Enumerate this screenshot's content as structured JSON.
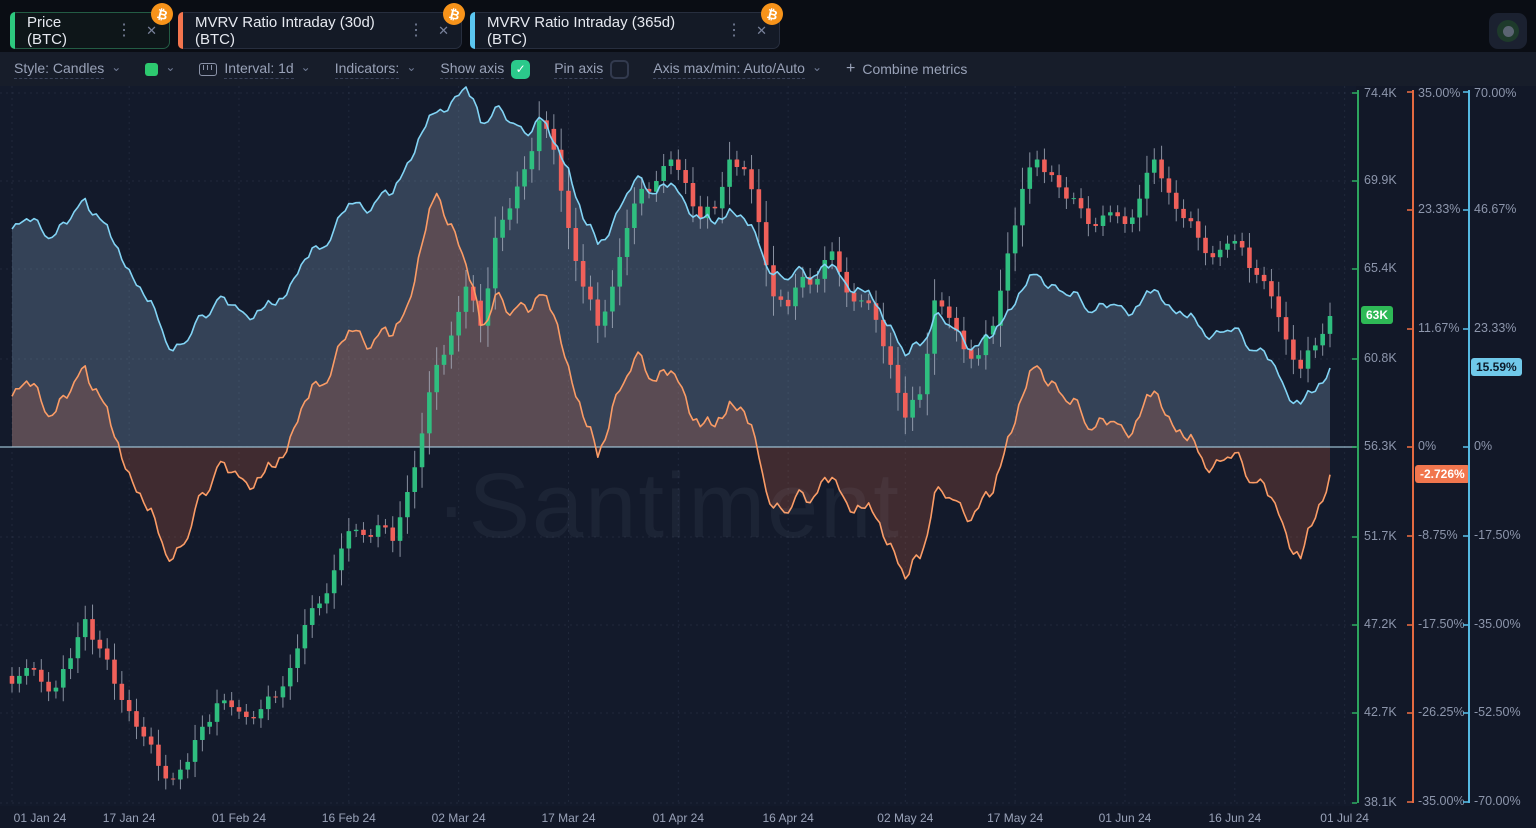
{
  "tabs": [
    {
      "label": "Price (BTC)",
      "accent": "#2dc97e",
      "selected": true
    },
    {
      "label": "MVRV Ratio Intraday (30d) (BTC)",
      "accent": "#f4754e",
      "selected": false
    },
    {
      "label": "MVRV Ratio Intraday (365d) (BTC)",
      "accent": "#5bc6f0",
      "selected": false
    }
  ],
  "tab_icons": {
    "menu": "⋮",
    "close": "✕",
    "coin": "₿"
  },
  "toolbar": {
    "style_label": "Style: Candles",
    "color_swatch": "#2dc96f",
    "interval_label": "Interval: 1d",
    "indicators_label": "Indicators:",
    "show_axis_label": "Show axis",
    "show_axis_checked": true,
    "check_glyph": "✓",
    "checkbox_on_color": "#2bc98b",
    "pin_axis_label": "Pin axis",
    "pin_axis_checked": false,
    "axis_maxmin_label": "Axis max/min: Auto/Auto",
    "combine_plus": "+",
    "combine_label": "Combine metrics",
    "caret": "⌄"
  },
  "watermark": "·Santiment",
  "axes": {
    "price": {
      "color": "#2da45f",
      "badge_bg": "#2eb956",
      "badge_text_color": "#ffffff",
      "current": "63K",
      "current_value": 63,
      "min": 38.1,
      "max": 74.4,
      "ticks": [
        {
          "v": 74.4,
          "label": "74.4K"
        },
        {
          "v": 69.9,
          "label": "69.9K"
        },
        {
          "v": 65.4,
          "label": "65.4K"
        },
        {
          "v": 60.8,
          "label": "60.8K"
        },
        {
          "v": 56.3,
          "label": "56.3K"
        },
        {
          "v": 51.7,
          "label": "51.7K"
        },
        {
          "v": 47.2,
          "label": "47.2K"
        },
        {
          "v": 42.7,
          "label": "42.7K"
        },
        {
          "v": 38.1,
          "label": "38.1K"
        }
      ]
    },
    "mvrv30": {
      "color": "#e46a41",
      "badge_bg": "#f1764e",
      "badge_text_color": "#ffffff",
      "current": "-2.726%",
      "current_value": -2.726,
      "half_range": 35,
      "ticks": [
        {
          "v": 35,
          "label": "35.00%"
        },
        {
          "v": 23.33,
          "label": "23.33%"
        },
        {
          "v": 11.67,
          "label": "11.67%"
        },
        {
          "v": 0,
          "label": "0%"
        },
        {
          "v": -8.75,
          "label": "-8.75%"
        },
        {
          "v": -17.5,
          "label": "-17.50%"
        },
        {
          "v": -26.25,
          "label": "-26.25%"
        },
        {
          "v": -35,
          "label": "-35.00%"
        }
      ]
    },
    "mvrv365": {
      "color": "#55b9e2",
      "badge_bg": "#70c9ea",
      "badge_text_color": "#0d1b2a",
      "current": "15.59%",
      "current_value": 15.59,
      "half_range": 70,
      "ticks": [
        {
          "v": 70,
          "label": "70.00%"
        },
        {
          "v": 46.67,
          "label": "46.67%"
        },
        {
          "v": 23.33,
          "label": "23.33%"
        },
        {
          "v": 0,
          "label": "0%"
        },
        {
          "v": -17.5,
          "label": "-17.50%"
        },
        {
          "v": -35,
          "label": "-35.00%"
        },
        {
          "v": -52.5,
          "label": "-52.50%"
        },
        {
          "v": -70,
          "label": "-70.00%"
        }
      ]
    }
  },
  "x_axis": {
    "total_days": 182,
    "ticks": [
      {
        "day": 0,
        "label": "01 Jan 24"
      },
      {
        "day": 16,
        "label": "17 Jan 24"
      },
      {
        "day": 31,
        "label": "01 Feb 24"
      },
      {
        "day": 46,
        "label": "16 Feb 24"
      },
      {
        "day": 61,
        "label": "02 Mar 24"
      },
      {
        "day": 76,
        "label": "17 Mar 24"
      },
      {
        "day": 91,
        "label": "01 Apr 24"
      },
      {
        "day": 106,
        "label": "16 Apr 24"
      },
      {
        "day": 122,
        "label": "02 May 24"
      },
      {
        "day": 137,
        "label": "17 May 24"
      },
      {
        "day": 152,
        "label": "01 Jun 24"
      },
      {
        "day": 167,
        "label": "16 Jun 24"
      },
      {
        "day": 182,
        "label": "01 Jul 24"
      }
    ]
  },
  "chart_data": {
    "type": "mixed",
    "title": "BTC price candles with MVRV Ratio Intraday 30d and 365d overlays",
    "x": {
      "start": "01 Jan 24",
      "end": "01 Jul 24",
      "points": 91,
      "step_days": 2
    },
    "price_axis": {
      "min": 38.1,
      "max": 74.4,
      "unit": "K USD"
    },
    "zero_line_price_level": 56.3,
    "baseline": 0,
    "grid": true,
    "colors": {
      "background": "#131a2b",
      "grid": "rgba(148,166,205,0.10)",
      "zero_line": "#a7cbdd",
      "wick": "#aeb6c6"
    },
    "series": [
      {
        "name": "Price (BTC)",
        "type": "candlestick",
        "up_color": "#2fbe7f",
        "down_color": "#f0605a",
        "closes": [
          44.2,
          45.0,
          44.3,
          44.0,
          45.5,
          47.5,
          46.0,
          44.2,
          42.8,
          41.5,
          40.0,
          39.3,
          40.2,
          42.0,
          43.2,
          43.0,
          42.5,
          42.9,
          43.5,
          45.0,
          47.2,
          48.3,
          50.0,
          52.0,
          51.8,
          52.3,
          51.5,
          54.0,
          57.0,
          60.5,
          62.0,
          64.5,
          62.5,
          67.0,
          68.5,
          70.5,
          73.0,
          71.5,
          67.5,
          64.5,
          62.5,
          64.5,
          67.5,
          69.5,
          69.9,
          71.0,
          69.8,
          68.0,
          68.5,
          71.0,
          70.5,
          67.8,
          64.0,
          63.5,
          65.0,
          64.9,
          66.3,
          64.2,
          63.8,
          62.8,
          60.5,
          57.8,
          59.0,
          63.8,
          62.9,
          61.3,
          61.0,
          62.5,
          66.2,
          69.5,
          71.0,
          70.2,
          69.0,
          68.5,
          67.6,
          68.3,
          67.7,
          69.0,
          71.0,
          69.3,
          68.0,
          67.0,
          66.0,
          66.7,
          66.5,
          65.1,
          64.0,
          61.8,
          60.3,
          61.5,
          63.0
        ]
      },
      {
        "name": "MVRV Ratio Intraday (30d) (BTC)",
        "type": "area-line",
        "color": "#fb9c66",
        "fill": "rgba(244,116,72,0.20)",
        "axis_range": [
          -35,
          35
        ],
        "unit": "%",
        "values": [
          5,
          6.5,
          4.5,
          3.5,
          5.5,
          8,
          5,
          1,
          -2.5,
          -5.5,
          -8.5,
          -11,
          -9,
          -4.5,
          -2,
          -2.5,
          -3.5,
          -3,
          -2,
          1,
          4.5,
          6,
          8.5,
          11.5,
          10.5,
          11,
          11,
          14,
          20,
          25,
          22,
          18,
          12,
          15,
          13,
          14,
          15,
          13,
          8,
          3,
          -1,
          4,
          7,
          9,
          6.5,
          7.5,
          5,
          2,
          2,
          4.5,
          3.5,
          -1,
          -6,
          -6.5,
          -4.5,
          -4.5,
          -3,
          -5.5,
          -6,
          -7,
          -9.5,
          -13,
          -11,
          -4.5,
          -5,
          -6.5,
          -6,
          -4.5,
          1,
          5,
          8,
          6.5,
          4.5,
          3.5,
          2,
          2.5,
          1.5,
          3,
          5.5,
          3,
          1,
          -0.5,
          -2,
          -1,
          -1.5,
          -3.5,
          -5,
          -8.5,
          -11,
          -7,
          -2.726
        ]
      },
      {
        "name": "MVRV Ratio Intraday (365d) (BTC)",
        "type": "area-line",
        "color": "#82d4f5",
        "fill": "rgba(158,198,232,0.24)",
        "axis_range": [
          -70,
          70
        ],
        "unit": "%",
        "values": [
          43,
          45,
          43,
          42,
          45,
          49,
          45,
          40,
          35,
          30,
          25,
          19,
          21,
          26,
          29,
          28,
          26,
          27,
          28,
          32,
          37,
          39,
          43,
          48,
          47,
          49,
          50,
          56,
          62,
          66,
          68,
          71,
          64,
          67,
          64,
          62,
          65,
          60,
          55,
          45,
          40,
          44,
          50,
          53,
          50,
          52,
          48,
          45,
          44,
          47,
          45,
          40,
          34,
          33,
          35,
          34,
          36,
          32,
          31,
          28,
          24,
          18,
          20,
          26,
          24,
          21,
          20,
          22,
          27,
          31,
          34,
          32,
          30,
          29,
          27,
          28,
          27,
          28,
          31,
          28,
          26,
          24,
          22,
          23,
          22,
          19,
          17,
          11,
          8.5,
          11,
          15.59
        ]
      }
    ]
  }
}
